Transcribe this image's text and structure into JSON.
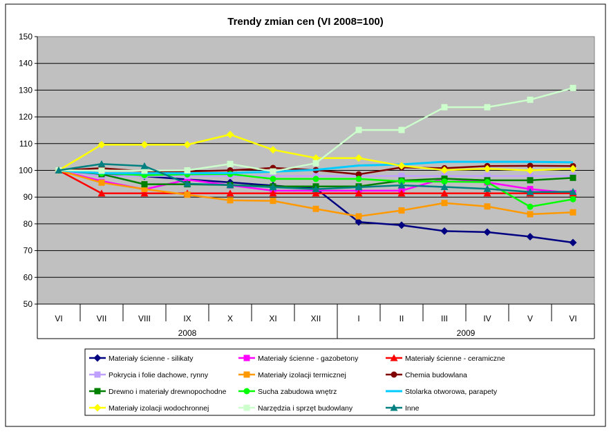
{
  "chart_data": {
    "type": "line",
    "title": "Trendy zmian cen (VI 2008=100)",
    "xlabel": "",
    "ylabel": "",
    "ylim": [
      50,
      150
    ],
    "yticks": [
      50,
      60,
      70,
      80,
      90,
      100,
      110,
      120,
      130,
      140,
      150
    ],
    "grid": true,
    "legend": "bottom",
    "categories": [
      "VI",
      "VII",
      "VIII",
      "IX",
      "X",
      "XI",
      "XII",
      "I",
      "II",
      "III",
      "IV",
      "V",
      "VI"
    ],
    "year_groups": [
      {
        "label": "2008",
        "from": 0,
        "to": 6
      },
      {
        "label": "2009",
        "from": 7,
        "to": 12
      }
    ],
    "series": [
      {
        "name": "Materiały ścienne - silikaty",
        "color": "#000080",
        "marker": "diamond",
        "values": [
          100,
          98.9,
          97.8,
          96.6,
          95.5,
          94.3,
          93.2,
          80.7,
          79.5,
          77.3,
          76.9,
          75.2,
          73.0
        ]
      },
      {
        "name": "Materiały ścienne - gazobetony",
        "color": "#ff00ff",
        "marker": "square",
        "values": [
          100,
          96.0,
          92.9,
          96.5,
          94.4,
          92.4,
          92.4,
          92.4,
          92.4,
          97.0,
          95.5,
          93.0,
          91.5
        ]
      },
      {
        "name": "Materiały ścienne - ceramiczne",
        "color": "#ff0000",
        "marker": "triangle",
        "values": [
          100,
          91.4,
          91.4,
          91.4,
          91.4,
          91.4,
          91.4,
          91.4,
          91.4,
          91.4,
          91.4,
          91.4,
          91.4
        ]
      },
      {
        "name": "Pokrycia i folie dachowe, rynny",
        "color": "#c0a0ff",
        "marker": "square",
        "values": [
          100,
          97.9,
          97.9,
          97.9,
          97.9,
          97.9,
          97.9,
          97.9,
          97.9,
          97.9,
          97.9,
          97.9,
          97.9
        ]
      },
      {
        "name": "Materiały izolacji termicznej",
        "color": "#ff9900",
        "marker": "square",
        "values": [
          100,
          95.4,
          93.0,
          90.9,
          88.8,
          88.6,
          85.6,
          82.8,
          85.0,
          87.8,
          86.5,
          83.6,
          84.3
        ]
      },
      {
        "name": "Chemia budowlana",
        "color": "#800000",
        "marker": "circle",
        "values": [
          100,
          100.8,
          99.6,
          99.6,
          100.0,
          100.9,
          100.1,
          98.5,
          101.1,
          100.8,
          101.6,
          101.7,
          101.6
        ]
      },
      {
        "name": "Drewno i materiały drewnopochodne",
        "color": "#008000",
        "marker": "square",
        "values": [
          100,
          98.6,
          94.8,
          94.8,
          94.5,
          94.0,
          94.0,
          94.0,
          96.2,
          96.9,
          96.3,
          96.3,
          97.2
        ]
      },
      {
        "name": "Sucha zabudowa wnętrz",
        "color": "#00ff00",
        "marker": "circle",
        "values": [
          100,
          98.9,
          98.2,
          98.5,
          98.6,
          96.8,
          96.8,
          96.8,
          95.9,
          95.8,
          95.6,
          86.4,
          89.2
        ]
      },
      {
        "name": "Stolarka otworowa, parapety",
        "color": "#00ccff",
        "marker": "none",
        "values": [
          100,
          98.9,
          98.9,
          98.9,
          99.0,
          99.5,
          100.2,
          101.8,
          102.2,
          103.2,
          103.2,
          103.2,
          103.0
        ]
      },
      {
        "name": "Materiały izolacji wodochronnej",
        "color": "#ffff00",
        "marker": "diamond",
        "values": [
          100,
          109.6,
          109.6,
          109.6,
          113.4,
          107.7,
          104.6,
          104.6,
          101.7,
          100.1,
          100.6,
          100.0,
          100.6
        ]
      },
      {
        "name": "Narzędzia i sprzęt budowlany",
        "color": "#ccffcc",
        "marker": "square",
        "values": [
          100,
          99.9,
          99.9,
          100.0,
          102.4,
          99.6,
          102.7,
          115.1,
          115.1,
          123.6,
          123.6,
          126.4,
          130.8
        ]
      },
      {
        "name": "Inne",
        "color": "#008080",
        "marker": "triangle",
        "values": [
          100,
          102.4,
          101.6,
          95.0,
          94.5,
          93.7,
          93.0,
          93.7,
          94.4,
          93.8,
          93.1,
          91.9,
          92.0
        ]
      }
    ]
  }
}
